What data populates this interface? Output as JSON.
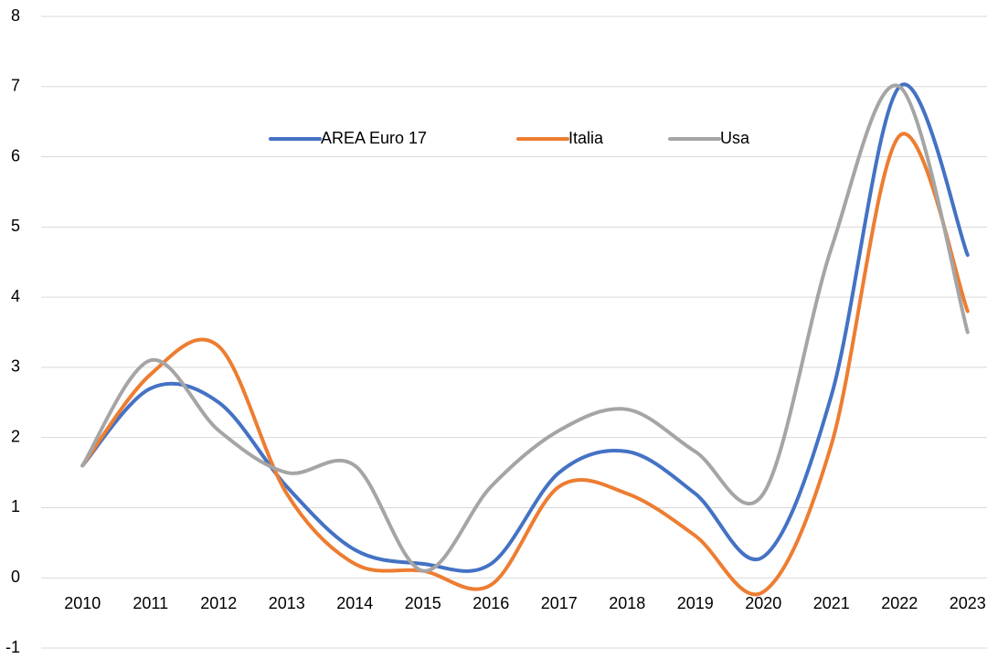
{
  "chart_data": {
    "type": "line",
    "categories": [
      "2010",
      "2011",
      "2012",
      "2013",
      "2014",
      "2015",
      "2016",
      "2017",
      "2018",
      "2019",
      "2020",
      "2021",
      "2022",
      "2023"
    ],
    "series": [
      {
        "name": "AREA Euro 17",
        "color": "#4472c4",
        "values": [
          1.6,
          2.7,
          2.5,
          1.3,
          0.4,
          0.2,
          0.2,
          1.5,
          1.8,
          1.2,
          0.3,
          2.6,
          7.0,
          4.6
        ]
      },
      {
        "name": "Italia",
        "color": "#ed7d31",
        "values": [
          1.6,
          2.9,
          3.3,
          1.2,
          0.2,
          0.1,
          -0.1,
          1.3,
          1.2,
          0.6,
          -0.2,
          1.9,
          6.3,
          3.8
        ]
      },
      {
        "name": "Usa",
        "color": "#a5a5a5",
        "values": [
          1.6,
          3.1,
          2.1,
          1.5,
          1.6,
          0.1,
          1.3,
          2.1,
          2.4,
          1.8,
          1.2,
          4.7,
          7.0,
          3.5
        ]
      }
    ],
    "ylim": [
      -1,
      8
    ],
    "yticks": [
      -1,
      0,
      1,
      2,
      3,
      4,
      5,
      6,
      7,
      8
    ],
    "grid": true,
    "smooth": true,
    "legend": "top"
  }
}
